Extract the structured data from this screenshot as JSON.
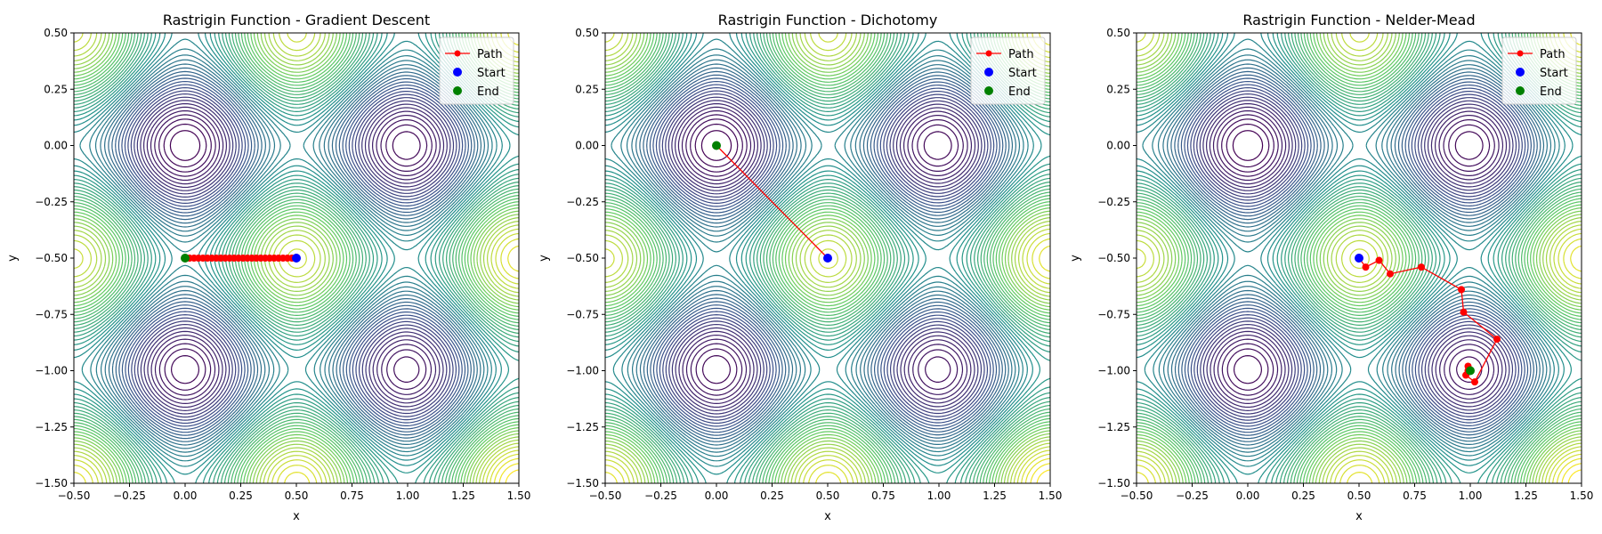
{
  "figure_background": "#ffffff",
  "colors": {
    "path": "#ff0000",
    "start": "#0000ff",
    "end": "#008000",
    "colormap": [
      "#440154",
      "#3b528b",
      "#21918c",
      "#5ec962",
      "#fde725"
    ]
  },
  "chart_data": [
    {
      "type": "line",
      "subtype": "contour-with-path",
      "title": "Rastrigin Function - Gradient Descent",
      "xlabel": "x",
      "ylabel": "y",
      "xlim": [
        -0.5,
        1.5
      ],
      "ylim": [
        -1.5,
        0.5
      ],
      "xticks": [
        "−0.50",
        "−0.25",
        "0.00",
        "0.25",
        "0.50",
        "0.75",
        "1.00",
        "1.25",
        "1.50"
      ],
      "yticks": [
        "−1.50",
        "−1.25",
        "−1.00",
        "−0.75",
        "−0.50",
        "−0.25",
        "0.00",
        "0.25",
        "0.50"
      ],
      "grid": false,
      "legend_position": "top-right",
      "legend": [
        "Path",
        "Start",
        "End"
      ],
      "path": {
        "x": [
          0.5,
          0.48,
          0.46,
          0.44,
          0.42,
          0.4,
          0.38,
          0.36,
          0.34,
          0.32,
          0.3,
          0.28,
          0.26,
          0.24,
          0.22,
          0.2,
          0.18,
          0.16,
          0.14,
          0.12,
          0.1,
          0.08,
          0.06,
          0.04,
          0.02,
          0.0
        ],
        "y": [
          -0.5,
          -0.5,
          -0.5,
          -0.5,
          -0.5,
          -0.5,
          -0.5,
          -0.5,
          -0.5,
          -0.5,
          -0.5,
          -0.5,
          -0.5,
          -0.5,
          -0.5,
          -0.5,
          -0.5,
          -0.5,
          -0.5,
          -0.5,
          -0.5,
          -0.5,
          -0.5,
          -0.5,
          -0.5,
          -0.5
        ]
      },
      "start": {
        "x": 0.5,
        "y": -0.5
      },
      "end": {
        "x": 0.0,
        "y": -0.5
      }
    },
    {
      "type": "line",
      "subtype": "contour-with-path",
      "title": "Rastrigin Function - Dichotomy",
      "xlabel": "x",
      "ylabel": "y",
      "xlim": [
        -0.5,
        1.5
      ],
      "ylim": [
        -1.5,
        0.5
      ],
      "xticks": [
        "−0.50",
        "−0.25",
        "0.00",
        "0.25",
        "0.50",
        "0.75",
        "1.00",
        "1.25",
        "1.50"
      ],
      "yticks": [
        "−1.50",
        "−1.25",
        "−1.00",
        "−0.75",
        "−0.50",
        "−0.25",
        "0.00",
        "0.25",
        "0.50"
      ],
      "grid": false,
      "legend_position": "top-right",
      "legend": [
        "Path",
        "Start",
        "End"
      ],
      "path": {
        "x": [
          0.5,
          0.0
        ],
        "y": [
          -0.5,
          0.0
        ]
      },
      "start": {
        "x": 0.5,
        "y": -0.5
      },
      "end": {
        "x": 0.0,
        "y": 0.0
      }
    },
    {
      "type": "line",
      "subtype": "contour-with-path",
      "title": "Rastrigin Function - Nelder-Mead",
      "xlabel": "x",
      "ylabel": "y",
      "xlim": [
        -0.5,
        1.5
      ],
      "ylim": [
        -1.5,
        0.5
      ],
      "xticks": [
        "−0.50",
        "−0.25",
        "0.00",
        "0.25",
        "0.50",
        "0.75",
        "1.00",
        "1.25",
        "1.50"
      ],
      "yticks": [
        "−1.50",
        "−1.25",
        "−1.00",
        "−0.75",
        "−0.50",
        "−0.25",
        "0.00",
        "0.25",
        "0.50"
      ],
      "grid": false,
      "legend_position": "top-right",
      "legend": [
        "Path",
        "Start",
        "End"
      ],
      "path": {
        "x": [
          0.5,
          0.53,
          0.59,
          0.64,
          0.78,
          0.96,
          0.97,
          1.12,
          1.02,
          0.98,
          0.99,
          1.0,
          0.99,
          1.0
        ],
        "y": [
          -0.5,
          -0.54,
          -0.51,
          -0.57,
          -0.54,
          -0.64,
          -0.74,
          -0.86,
          -1.05,
          -1.02,
          -0.98,
          -1.0,
          -1.0,
          -1.0
        ]
      },
      "start": {
        "x": 0.5,
        "y": -0.5
      },
      "end": {
        "x": 1.0,
        "y": -1.0
      }
    }
  ]
}
